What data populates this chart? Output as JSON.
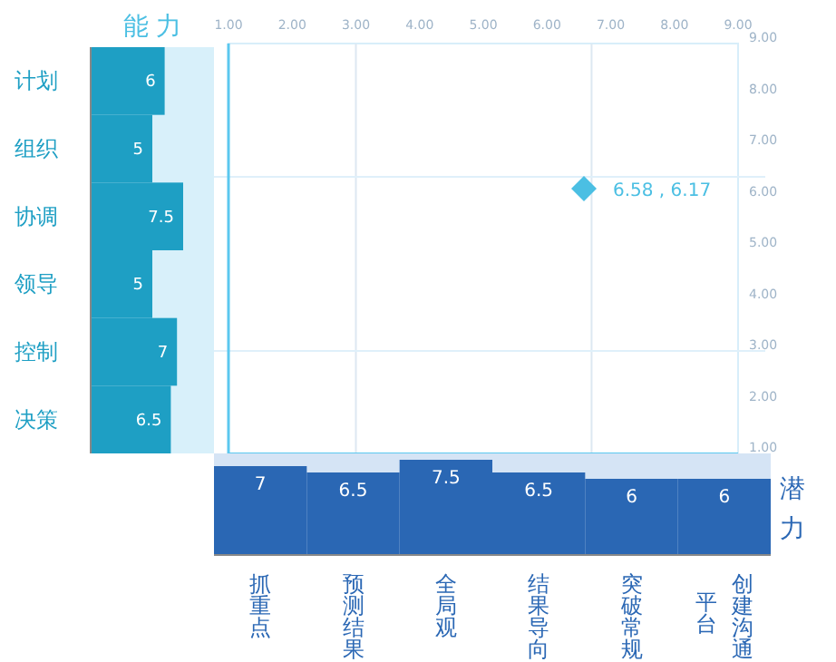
{
  "chart_data": [
    {
      "type": "bar",
      "orientation": "horizontal",
      "title": "能 力",
      "categories": [
        "计划",
        "组织",
        "协调",
        "领导",
        "控制",
        "决策"
      ],
      "values": [
        6,
        5,
        7.5,
        5,
        7,
        6.5
      ],
      "color": "#1e9fc4",
      "xlim": [
        0,
        10
      ],
      "bands": [
        {
          "axis": "x",
          "from": 0,
          "to": 10,
          "color": "#d8f0fa"
        }
      ],
      "data_labels": true,
      "tick_labels": "y"
    },
    {
      "type": "scatter",
      "marker": "diamond",
      "series": [
        {
          "color": "#4bbfe3",
          "x": [
            6.58
          ],
          "values": [
            6.17
          ],
          "value_labels": [
            "6.58 , 6.17"
          ]
        }
      ],
      "xlim": [
        1,
        9
      ],
      "ylim": [
        1,
        9
      ],
      "xticks": [
        {
          "value": 1,
          "label": "1.00"
        },
        {
          "value": 2,
          "label": "2.00"
        },
        {
          "value": 3,
          "label": "3.00"
        },
        {
          "value": 4,
          "label": "4.00"
        },
        {
          "value": 5,
          "label": "5.00"
        },
        {
          "value": 6,
          "label": "6.00"
        },
        {
          "value": 7,
          "label": "7.00"
        },
        {
          "value": 8,
          "label": "8.00"
        },
        {
          "value": 9,
          "label": "9.00"
        }
      ],
      "yticks": [
        {
          "value": 1,
          "label": "1.00"
        },
        {
          "value": 2,
          "label": "2.00"
        },
        {
          "value": 3,
          "label": "3.00"
        },
        {
          "value": 4,
          "label": "4.00"
        },
        {
          "value": 5,
          "label": "5.00"
        },
        {
          "value": 6,
          "label": "6.00"
        },
        {
          "value": 7,
          "label": "7.00"
        },
        {
          "value": 8,
          "label": "8.00"
        },
        {
          "value": 9,
          "label": "9.00"
        }
      ],
      "ref_lines": [
        {
          "axis": "x",
          "value": 3,
          "color": "#dde8f2"
        },
        {
          "axis": "x",
          "value": 6.7,
          "color": "#dde8f2"
        },
        {
          "axis": "y",
          "value": 3,
          "color": "#dff0fa"
        },
        {
          "axis": "y",
          "value": 6.4,
          "color": "#dff0fa"
        }
      ]
    },
    {
      "type": "bar",
      "title": "潜力",
      "categories": [
        "抓重点",
        "预测结果",
        "全局观",
        "结果导向",
        "突破常规",
        "创建沟通平台"
      ],
      "values": [
        7,
        6.5,
        7.5,
        6.5,
        6,
        6
      ],
      "color": "#2a67b4",
      "ylim": [
        0,
        8
      ],
      "bands": [
        {
          "axis": "y",
          "from": 0,
          "to": 8,
          "color": "#d5e4f5"
        }
      ],
      "data_labels": true,
      "tick_labels": "x"
    }
  ]
}
